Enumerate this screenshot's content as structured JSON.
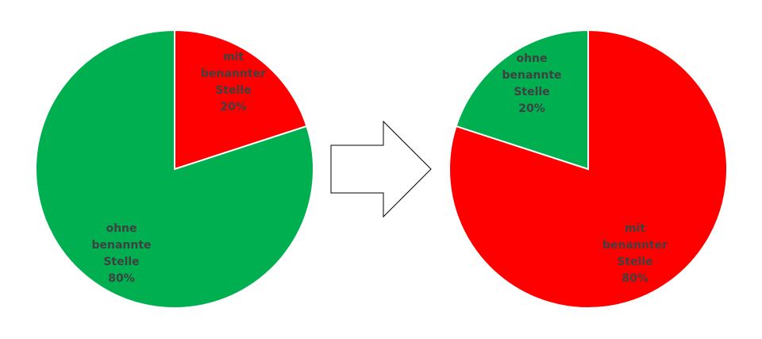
{
  "colors": {
    "green": "#00B050",
    "red": "#FF0000",
    "slice_border": "#ffffff",
    "label": "#404040",
    "arrow_stroke": "#000000",
    "arrow_fill": "#ffffff"
  },
  "arrow": {
    "icon": "right-arrow-outline-icon"
  },
  "chart_data": [
    {
      "type": "pie",
      "title": "",
      "start_angle_deg": 0,
      "direction": "clockwise",
      "slices": [
        {
          "key": "mit",
          "value": 20,
          "color": "#FF0000",
          "label_lines": [
            "mit",
            "benannter",
            "Stelle",
            "20%"
          ]
        },
        {
          "key": "ohne",
          "value": 80,
          "color": "#00B050",
          "label_lines": [
            "ohne",
            "benannte",
            "Stelle",
            "80%"
          ]
        }
      ]
    },
    {
      "type": "pie",
      "title": "",
      "start_angle_deg": 0,
      "direction": "clockwise",
      "slices": [
        {
          "key": "mit",
          "value": 80,
          "color": "#FF0000",
          "label_lines": [
            "mit",
            "benannter",
            "Stelle",
            "80%"
          ]
        },
        {
          "key": "ohne",
          "value": 20,
          "color": "#00B050",
          "label_lines": [
            "ohne",
            "benannte",
            "Stelle",
            "20%"
          ]
        }
      ]
    }
  ]
}
